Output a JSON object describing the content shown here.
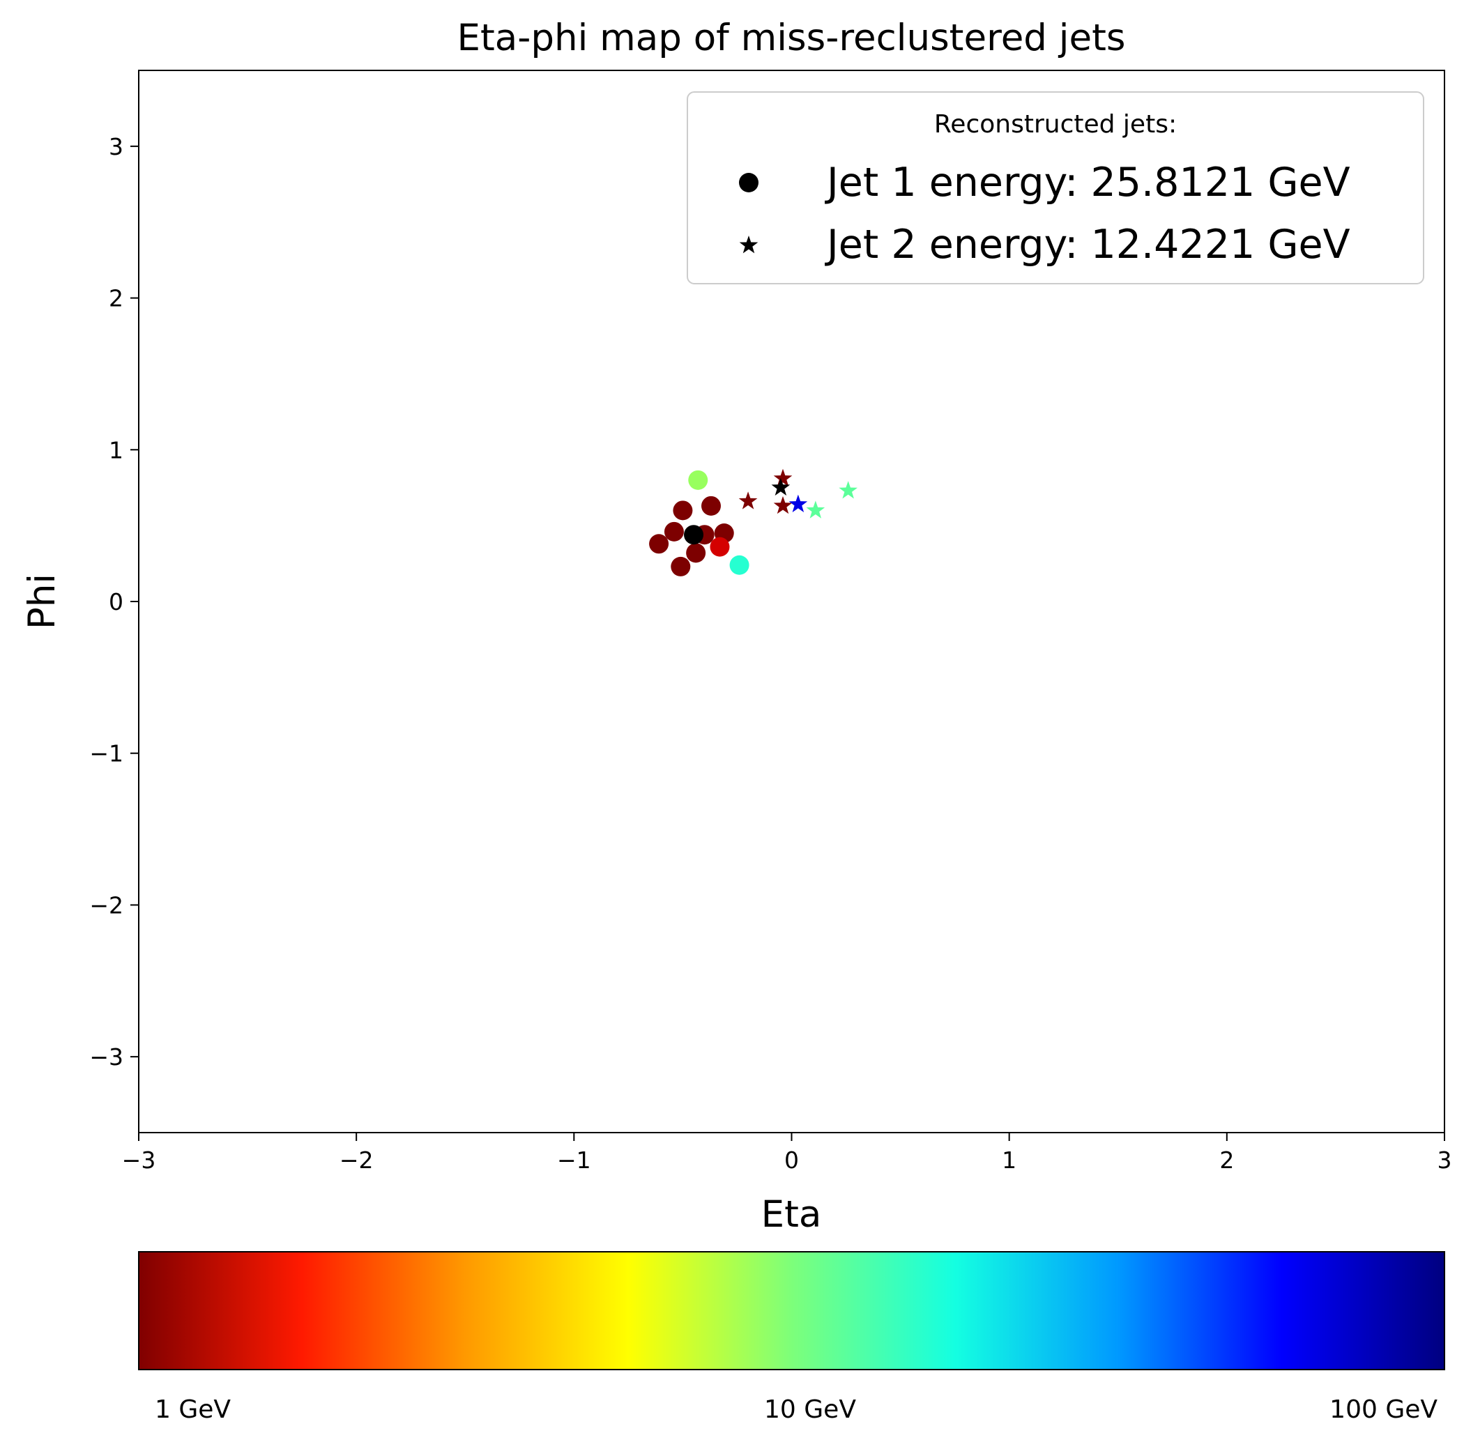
{
  "chart_data": {
    "type": "scatter",
    "title": "Eta-phi map of miss-reclustered jets",
    "xlabel": "Eta",
    "ylabel": "Phi",
    "xlim": [
      -3,
      3
    ],
    "ylim": [
      -3.5,
      3.5
    ],
    "xticks": [
      -3,
      -2,
      -1,
      0,
      1,
      2,
      3
    ],
    "xtick_labels": [
      "−3",
      "−2",
      "−1",
      "0",
      "1",
      "2",
      "3"
    ],
    "yticks": [
      3,
      2,
      1,
      0,
      -1,
      -2,
      -3
    ],
    "ytick_labels": [
      "3",
      "2",
      "1",
      "0",
      "−1",
      "−2",
      "−3"
    ],
    "grid": false,
    "legend": {
      "placement": "top-right",
      "title": "Reconstructed jets:",
      "entries": [
        {
          "label": "Jet 1 energy: 25.8121 GeV",
          "marker": "circle",
          "color": "#000000"
        },
        {
          "label": "Jet 2 energy: 12.4221 GeV",
          "marker": "star",
          "color": "#000000"
        }
      ]
    },
    "colormap": "jet (reversed), log scale",
    "colorbar": {
      "range_gev": [
        1,
        100
      ],
      "ticks": [
        1,
        10,
        100
      ],
      "tick_labels": [
        "1 GeV",
        "10 GeV",
        "100 GeV"
      ],
      "gradient_stops": [
        "#800000",
        "#ff1a00",
        "#ff9900",
        "#ffff00",
        "#7dff7a",
        "#14ffe1",
        "#0099ff",
        "#0000ff",
        "#000080"
      ]
    },
    "series": [
      {
        "marker": "circle",
        "points": [
          {
            "x": -0.43,
            "y": 0.8,
            "color": "#98ff5e"
          },
          {
            "x": -0.5,
            "y": 0.6,
            "color": "#7d0000"
          },
          {
            "x": -0.37,
            "y": 0.63,
            "color": "#7d0000"
          },
          {
            "x": -0.54,
            "y": 0.46,
            "color": "#7d0000"
          },
          {
            "x": -0.61,
            "y": 0.38,
            "color": "#7d0000"
          },
          {
            "x": -0.4,
            "y": 0.44,
            "color": "#7d0000"
          },
          {
            "x": -0.31,
            "y": 0.45,
            "color": "#7d0000"
          },
          {
            "x": -0.44,
            "y": 0.32,
            "color": "#7d0000"
          },
          {
            "x": -0.51,
            "y": 0.23,
            "color": "#7d0000"
          },
          {
            "x": -0.33,
            "y": 0.36,
            "color": "#d40000"
          },
          {
            "x": -0.24,
            "y": 0.24,
            "color": "#26ffd1"
          },
          {
            "x": -0.45,
            "y": 0.44,
            "color": "#000000"
          }
        ]
      },
      {
        "marker": "star",
        "points": [
          {
            "x": -0.2,
            "y": 0.66,
            "color": "#7d0000"
          },
          {
            "x": -0.04,
            "y": 0.81,
            "color": "#7d0000"
          },
          {
            "x": -0.04,
            "y": 0.63,
            "color": "#7d0000"
          },
          {
            "x": 0.11,
            "y": 0.6,
            "color": "#5cff9a"
          },
          {
            "x": 0.26,
            "y": 0.73,
            "color": "#5cff9a"
          },
          {
            "x": 0.03,
            "y": 0.64,
            "color": "#0000e6"
          },
          {
            "x": -0.05,
            "y": 0.75,
            "color": "#000000"
          }
        ]
      }
    ]
  }
}
